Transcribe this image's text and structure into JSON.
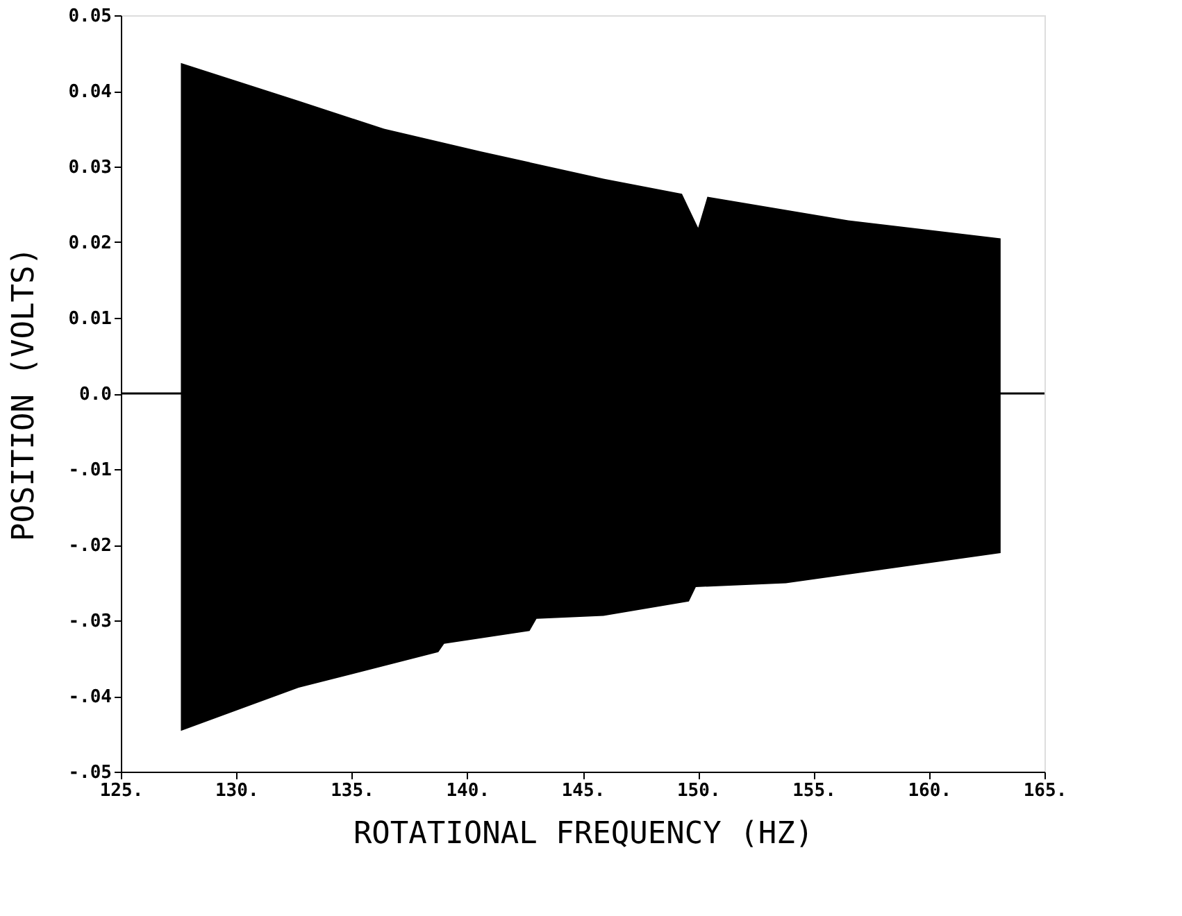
{
  "chart_data": {
    "type": "area",
    "xlabel": "ROTATIONAL FREQUENCY (HZ)",
    "ylabel": "POSITION (VOLTS)",
    "xlim": [
      125,
      165
    ],
    "ylim": [
      -0.05,
      0.05
    ],
    "xticks": [
      {
        "value": 125,
        "label": "125."
      },
      {
        "value": 130,
        "label": "130."
      },
      {
        "value": 135,
        "label": "135."
      },
      {
        "value": 140,
        "label": "140."
      },
      {
        "value": 145,
        "label": "145."
      },
      {
        "value": 150,
        "label": "150."
      },
      {
        "value": 155,
        "label": "155."
      },
      {
        "value": 160,
        "label": "160."
      },
      {
        "value": 165,
        "label": "165."
      }
    ],
    "yticks": [
      {
        "value": 0.05,
        "label": "0.05"
      },
      {
        "value": 0.04,
        "label": "0.04"
      },
      {
        "value": 0.03,
        "label": "0.03"
      },
      {
        "value": 0.02,
        "label": "0.02"
      },
      {
        "value": 0.01,
        "label": "0.01"
      },
      {
        "value": 0,
        "label": "0.0"
      },
      {
        "value": -0.01,
        "label": "-.01"
      },
      {
        "value": -0.02,
        "label": "-.02"
      },
      {
        "value": -0.03,
        "label": "-.03"
      },
      {
        "value": -0.04,
        "label": "-.04"
      },
      {
        "value": -0.05,
        "label": "-.05"
      }
    ],
    "series": [
      {
        "color": "#000000",
        "x": [
          127.6,
          132.7,
          136.4,
          140.6,
          145.9,
          149.3,
          150.0,
          150.4,
          156.5,
          163.1
        ],
        "values": [
          0.0437,
          0.0387,
          0.035,
          0.032,
          0.0284,
          0.0264,
          0.0219,
          0.026,
          0.0229,
          0.0205
        ]
      },
      {
        "color": "#000000",
        "x": [
          127.6,
          132.7,
          138.75,
          139.0,
          142.7,
          143.0,
          145.9,
          149.6,
          149.9,
          153.8,
          163.1
        ],
        "values": [
          -0.0446,
          -0.0389,
          -0.0342,
          -0.0331,
          -0.0314,
          -0.0298,
          -0.0294,
          -0.0275,
          -0.0256,
          -0.0251,
          -0.0211
        ]
      }
    ],
    "ref_lines": [
      {
        "axis": "y",
        "value": 0,
        "color": "#000000"
      }
    ],
    "grid": false
  }
}
